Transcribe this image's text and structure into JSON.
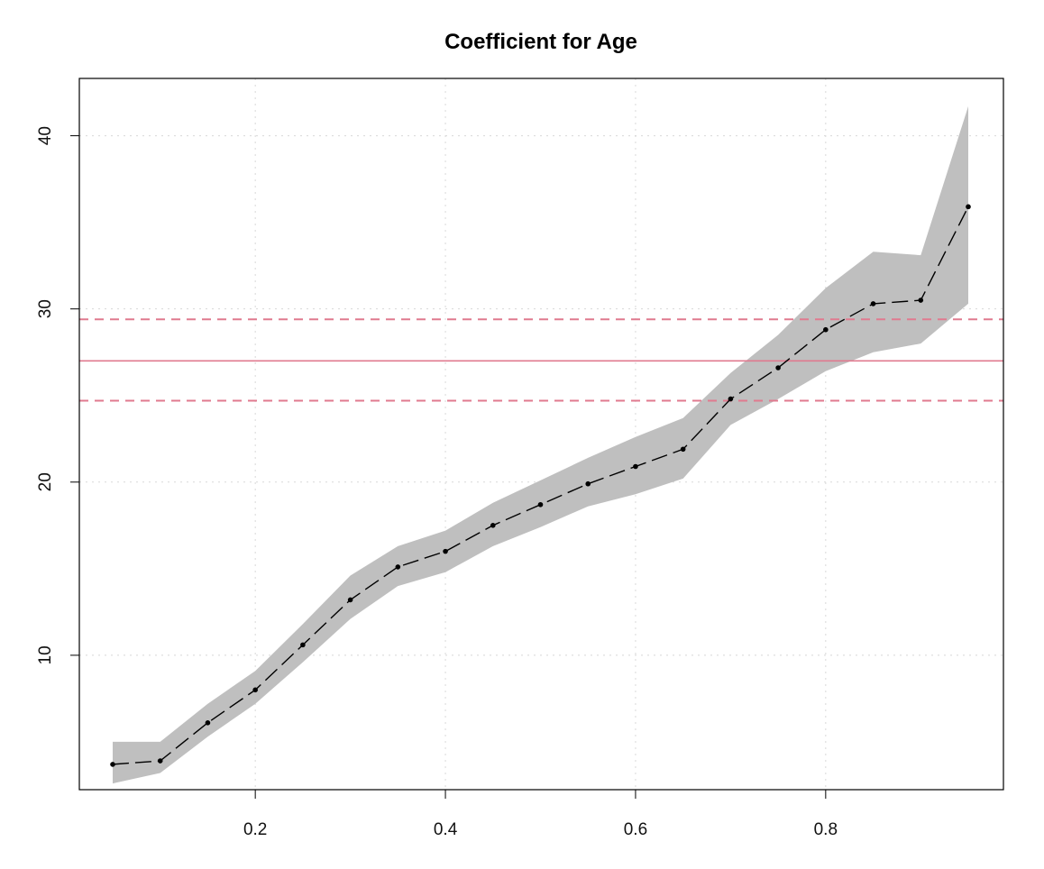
{
  "chart_data": {
    "type": "line",
    "title": "Coefficient for Age",
    "xlabel": "",
    "ylabel": "",
    "xlim": [
      0.05,
      0.95
    ],
    "ylim": [
      3.8,
      41.8
    ],
    "x_ticks": [
      0.2,
      0.4,
      0.6,
      0.8
    ],
    "x_tick_labels": [
      "0.2",
      "0.4",
      "0.6",
      "0.8"
    ],
    "y_ticks": [
      10,
      20,
      30,
      40
    ],
    "y_tick_labels": [
      "10",
      "20",
      "30",
      "40"
    ],
    "grid": true,
    "series": [
      {
        "x": [
          0.05,
          0.1,
          0.15,
          0.2,
          0.25,
          0.3,
          0.35,
          0.4,
          0.45,
          0.5,
          0.55,
          0.6,
          0.65,
          0.7,
          0.75,
          0.8,
          0.85,
          0.9,
          0.95
        ],
        "values": [
          3.7,
          3.9,
          6.1,
          8.0,
          10.6,
          13.2,
          15.1,
          16.0,
          17.5,
          18.7,
          19.9,
          20.9,
          21.9,
          24.8,
          26.6,
          28.8,
          30.3,
          30.5,
          35.9
        ],
        "lower": [
          2.6,
          3.2,
          5.3,
          7.2,
          9.6,
          12.1,
          14.0,
          14.8,
          16.3,
          17.4,
          18.6,
          19.3,
          20.2,
          23.3,
          24.8,
          26.4,
          27.5,
          28.0,
          30.3
        ],
        "upper": [
          5.0,
          5.0,
          7.2,
          9.1,
          11.8,
          14.6,
          16.3,
          17.2,
          18.8,
          20.1,
          21.4,
          22.6,
          23.7,
          26.3,
          28.5,
          31.2,
          33.3,
          33.1,
          41.7
        ]
      }
    ],
    "reference": {
      "estimate": 27.0,
      "lower": 24.7,
      "upper": 29.4
    },
    "colors": {
      "band": "#bfbfbf",
      "line": "#000000",
      "reference": "#e07a8f",
      "grid": "#d8d8d8"
    }
  }
}
